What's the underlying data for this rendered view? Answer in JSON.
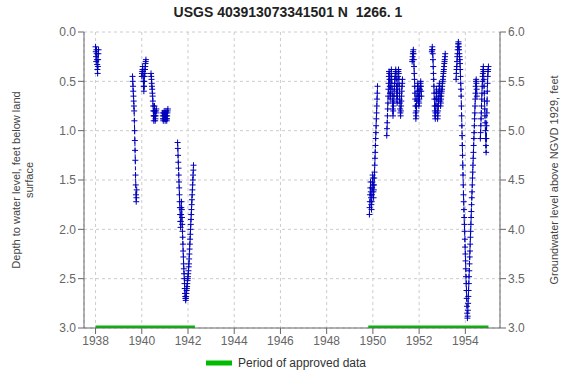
{
  "chart_data": {
    "type": "line",
    "title": "USGS 403913073341501 N  1266. 1",
    "ylabel": "Depth to water level, feet below land\nsurface",
    "y2label": "Groundwater level above NGVD 1929, feet",
    "xlim": [
      1937.5,
      1955.5
    ],
    "xticks": [
      1938,
      1940,
      1942,
      1944,
      1946,
      1948,
      1950,
      1952,
      1954
    ],
    "ylim": [
      3.0,
      0.0
    ],
    "yticks": [
      {
        "value": 0.0,
        "label": "0.0"
      },
      0.5,
      {
        "value": 1.0,
        "label": "1.0"
      },
      1.5,
      {
        "value": 2.0,
        "label": "2.0"
      },
      2.5,
      {
        "value": 3.0,
        "label": "3.0"
      }
    ],
    "y2lim": [
      3.0,
      6.0
    ],
    "y2ticks": [
      {
        "value": 3.0,
        "label": "3.0"
      },
      3.5,
      {
        "value": 4.0,
        "label": "4.0"
      },
      4.5,
      {
        "value": 5.0,
        "label": "5.0"
      },
      5.5,
      {
        "value": 6.0,
        "label": "6.0"
      }
    ],
    "grid": true,
    "legend": "bottom",
    "color": "#0000bb",
    "marker": "plus",
    "line_style": "dashed",
    "series": [
      {
        "x": [
          1938.0,
          1938.01,
          1938.02,
          1938.03,
          1938.04,
          1938.05,
          1938.06,
          1938.07,
          1938.08,
          1938.09,
          1938.1,
          1938.11,
          1938.12,
          1938.13
        ],
        "values": [
          0.15,
          0.2,
          0.25,
          0.3,
          0.18,
          0.22,
          0.28,
          0.33,
          0.38,
          0.42,
          0.35,
          0.28,
          0.22,
          0.18
        ]
      },
      {
        "x": [
          1939.6,
          1939.61,
          1939.62,
          1939.63,
          1939.64,
          1939.65,
          1939.66,
          1939.67,
          1939.68,
          1939.69,
          1939.7,
          1939.71,
          1939.72,
          1939.73,
          1939.74,
          1939.75,
          1939.76,
          1939.77,
          1939.78
        ],
        "values": [
          0.45,
          0.5,
          0.55,
          0.6,
          0.65,
          0.7,
          0.75,
          0.8,
          0.9,
          1.0,
          1.1,
          1.2,
          1.3,
          1.45,
          1.55,
          1.65,
          1.72,
          1.68,
          1.6
        ]
      },
      {
        "x": [
          1940.0,
          1940.01,
          1940.02,
          1940.03,
          1940.04,
          1940.05,
          1940.06,
          1940.07,
          1940.08,
          1940.09,
          1940.1,
          1940.11,
          1940.12,
          1940.13,
          1940.14,
          1940.15,
          1940.16,
          1940.17,
          1940.18
        ],
        "values": [
          0.45,
          0.42,
          0.4,
          0.38,
          0.35,
          0.4,
          0.45,
          0.5,
          0.55,
          0.6,
          0.55,
          0.5,
          0.45,
          0.42,
          0.38,
          0.35,
          0.32,
          0.3,
          0.28
        ]
      },
      {
        "x": [
          1940.4,
          1940.41,
          1940.42,
          1940.43,
          1940.44,
          1940.45,
          1940.46,
          1940.47,
          1940.48,
          1940.49,
          1940.5,
          1940.51,
          1940.52,
          1940.53,
          1940.54,
          1940.55,
          1940.56,
          1940.57,
          1940.58,
          1940.59,
          1940.6,
          1940.61,
          1940.62,
          1940.63
        ],
        "values": [
          0.42,
          0.45,
          0.48,
          0.52,
          0.55,
          0.58,
          0.62,
          0.65,
          0.7,
          0.75,
          0.8,
          0.85,
          0.9,
          0.85,
          0.8,
          0.75,
          0.8,
          0.85,
          0.9,
          0.88,
          0.85,
          0.82,
          0.8,
          0.78
        ]
      },
      {
        "x": [
          1940.9,
          1940.91,
          1940.92,
          1940.93,
          1940.94,
          1940.95,
          1940.96,
          1940.97,
          1940.98,
          1940.99,
          1941.0,
          1941.01,
          1941.02,
          1941.03,
          1941.04,
          1941.05,
          1941.06,
          1941.07,
          1941.08,
          1941.09,
          1941.1,
          1941.11,
          1941.12,
          1941.13
        ],
        "values": [
          0.82,
          0.85,
          0.88,
          0.9,
          0.88,
          0.85,
          0.82,
          0.8,
          0.83,
          0.85,
          0.88,
          0.9,
          0.88,
          0.85,
          0.82,
          0.8,
          0.85,
          0.88,
          0.9,
          0.88,
          0.85,
          0.82,
          0.8,
          0.78
        ]
      },
      {
        "x": [
          1941.55,
          1941.56,
          1941.57,
          1941.58,
          1941.59,
          1941.6,
          1941.61,
          1941.62,
          1941.63,
          1941.64,
          1941.65,
          1941.66,
          1941.67,
          1941.68,
          1941.69,
          1941.7,
          1941.71,
          1941.72,
          1941.73,
          1941.74,
          1941.75,
          1941.76,
          1941.77,
          1941.78,
          1941.79,
          1941.8,
          1941.81,
          1941.82,
          1941.83,
          1941.84,
          1941.85,
          1941.86,
          1941.87,
          1941.88,
          1941.89,
          1941.9,
          1941.91,
          1941.92,
          1941.93,
          1941.94,
          1941.95,
          1941.96,
          1941.97,
          1941.98,
          1941.99,
          1942.0,
          1942.01,
          1942.02,
          1942.03,
          1942.04,
          1942.05,
          1942.06,
          1942.07,
          1942.08,
          1942.09,
          1942.1,
          1942.11,
          1942.12,
          1942.13,
          1942.14,
          1942.15,
          1942.16,
          1942.17,
          1942.18,
          1942.19,
          1942.2,
          1942.21,
          1942.22,
          1942.23,
          1942.24
        ],
        "values": [
          1.12,
          1.18,
          1.25,
          1.32,
          1.38,
          1.45,
          1.52,
          1.58,
          1.65,
          1.72,
          1.78,
          1.85,
          1.92,
          1.98,
          1.92,
          1.85,
          1.78,
          1.72,
          1.8,
          1.88,
          1.95,
          2.02,
          2.08,
          2.15,
          2.22,
          2.28,
          2.35,
          2.4,
          2.45,
          2.5,
          2.55,
          2.6,
          2.65,
          2.68,
          2.7,
          2.72,
          2.7,
          2.68,
          2.65,
          2.62,
          2.6,
          2.58,
          2.55,
          2.52,
          2.5,
          2.48,
          2.45,
          2.42,
          2.38,
          2.35,
          2.3,
          2.25,
          2.2,
          2.15,
          2.1,
          2.05,
          2.0,
          1.95,
          1.9,
          1.85,
          1.8,
          1.75,
          1.7,
          1.65,
          1.6,
          1.55,
          1.5,
          1.45,
          1.4,
          1.35
        ]
      },
      {
        "x": [
          1949.85,
          1949.86,
          1949.87,
          1949.88,
          1949.89,
          1949.9,
          1949.91,
          1949.92,
          1949.93,
          1949.94,
          1949.95,
          1949.96,
          1949.97,
          1949.98,
          1949.99,
          1950.0,
          1950.01,
          1950.02,
          1950.03,
          1950.04,
          1950.05,
          1950.06,
          1950.07,
          1950.08,
          1950.09,
          1950.1,
          1950.11,
          1950.12,
          1950.13,
          1950.14,
          1950.15,
          1950.16,
          1950.17,
          1950.18,
          1950.19,
          1950.2
        ],
        "values": [
          1.85,
          1.78,
          1.72,
          1.65,
          1.58,
          1.52,
          1.62,
          1.68,
          1.75,
          1.8,
          1.72,
          1.65,
          1.58,
          1.52,
          1.45,
          1.48,
          1.55,
          1.62,
          1.68,
          1.6,
          1.55,
          1.48,
          1.42,
          1.35,
          1.28,
          1.22,
          1.15,
          1.08,
          1.02,
          0.95,
          0.88,
          0.82,
          0.75,
          0.68,
          0.62,
          0.55
        ]
      },
      {
        "x": [
          1950.6,
          1950.61,
          1950.62,
          1950.63,
          1950.64,
          1950.65,
          1950.66,
          1950.67,
          1950.68,
          1950.69,
          1950.7,
          1950.71,
          1950.72,
          1950.73,
          1950.74,
          1950.75,
          1950.76,
          1950.77,
          1950.78,
          1950.79,
          1950.8,
          1950.81,
          1950.82,
          1950.83,
          1950.84,
          1950.85,
          1950.86,
          1950.87,
          1950.88,
          1950.89,
          1950.9,
          1950.91,
          1950.92,
          1950.93,
          1950.94,
          1950.95,
          1950.96,
          1950.97,
          1950.98,
          1950.99,
          1951.0,
          1951.01,
          1951.02,
          1951.03,
          1951.04,
          1951.05,
          1951.06,
          1951.07,
          1951.08,
          1951.09,
          1951.1,
          1951.11,
          1951.12,
          1951.13,
          1951.14,
          1951.15,
          1951.16,
          1951.17,
          1951.18,
          1951.19,
          1951.2,
          1951.21,
          1951.22,
          1951.23,
          1951.24,
          1951.25,
          1951.26,
          1951.27,
          1951.28
        ],
        "values": [
          1.05,
          0.98,
          0.92,
          0.85,
          0.78,
          0.72,
          0.65,
          0.58,
          0.52,
          0.45,
          0.4,
          0.42,
          0.48,
          0.55,
          0.62,
          0.68,
          0.62,
          0.55,
          0.48,
          0.42,
          0.38,
          0.45,
          0.52,
          0.58,
          0.65,
          0.72,
          0.78,
          0.85,
          0.8,
          0.75,
          0.7,
          0.65,
          0.6,
          0.55,
          0.52,
          0.48,
          0.45,
          0.42,
          0.4,
          0.38,
          0.42,
          0.48,
          0.55,
          0.62,
          0.68,
          0.72,
          0.65,
          0.58,
          0.52,
          0.45,
          0.4,
          0.38,
          0.42,
          0.48,
          0.55,
          0.62,
          0.68,
          0.72,
          0.78,
          0.82,
          0.85,
          0.8,
          0.75,
          0.7,
          0.65,
          0.6,
          0.55,
          0.52,
          0.48
        ]
      },
      {
        "x": [
          1951.7,
          1951.71,
          1951.72,
          1951.73,
          1951.74,
          1951.75,
          1951.76,
          1951.77,
          1951.78,
          1951.79,
          1951.8,
          1951.81,
          1951.82,
          1951.83,
          1951.84,
          1951.85,
          1951.86,
          1951.87,
          1951.88,
          1951.89,
          1951.9,
          1951.91,
          1951.92,
          1951.93,
          1951.94,
          1951.95,
          1951.96,
          1951.97,
          1951.98,
          1951.99,
          1952.0,
          1952.01,
          1952.02,
          1952.03,
          1952.04,
          1952.05,
          1952.06,
          1952.07,
          1952.08,
          1952.09,
          1952.1
        ],
        "values": [
          0.3,
          0.28,
          0.25,
          0.22,
          0.2,
          0.18,
          0.22,
          0.28,
          0.35,
          0.42,
          0.48,
          0.55,
          0.62,
          0.68,
          0.75,
          0.82,
          0.88,
          0.85,
          0.8,
          0.75,
          0.7,
          0.65,
          0.6,
          0.55,
          0.52,
          0.55,
          0.6,
          0.65,
          0.7,
          0.75,
          0.72,
          0.68,
          0.65,
          0.6,
          0.58,
          0.55,
          0.52,
          0.5,
          0.55,
          0.6,
          0.65
        ]
      },
      {
        "x": [
          1952.55,
          1952.56,
          1952.57,
          1952.58,
          1952.59,
          1952.6,
          1952.61,
          1952.62,
          1952.63,
          1952.64,
          1952.65,
          1952.66,
          1952.67,
          1952.68,
          1952.69,
          1952.7,
          1952.71,
          1952.72,
          1952.73,
          1952.74,
          1952.75,
          1952.76,
          1952.77,
          1952.78,
          1952.79,
          1952.8,
          1952.81,
          1952.82,
          1952.83,
          1952.84,
          1952.85,
          1952.86,
          1952.87,
          1952.88,
          1952.89,
          1952.9,
          1952.91,
          1952.92,
          1952.93,
          1952.94,
          1952.95,
          1952.96,
          1952.97,
          1952.98,
          1952.99,
          1953.0,
          1953.01,
          1953.02,
          1953.03,
          1953.04,
          1953.05,
          1953.06,
          1953.07,
          1953.08,
          1953.09,
          1953.1,
          1953.11,
          1953.12,
          1953.13
        ],
        "values": [
          0.2,
          0.18,
          0.15,
          0.18,
          0.22,
          0.28,
          0.35,
          0.42,
          0.48,
          0.55,
          0.62,
          0.68,
          0.75,
          0.8,
          0.85,
          0.88,
          0.82,
          0.75,
          0.68,
          0.62,
          0.58,
          0.62,
          0.68,
          0.75,
          0.82,
          0.88,
          0.85,
          0.8,
          0.75,
          0.7,
          0.65,
          0.6,
          0.55,
          0.52,
          0.55,
          0.6,
          0.65,
          0.7,
          0.75,
          0.72,
          0.68,
          0.65,
          0.62,
          0.6,
          0.58,
          0.55,
          0.52,
          0.5,
          0.48,
          0.45,
          0.42,
          0.4,
          0.38,
          0.35,
          0.32,
          0.3,
          0.28,
          0.25,
          0.22
        ]
      },
      {
        "x": [
          1953.6,
          1953.61,
          1953.62,
          1953.63,
          1953.64,
          1953.65,
          1953.66,
          1953.67,
          1953.68,
          1953.69,
          1953.7,
          1953.71,
          1953.72,
          1953.73,
          1953.74,
          1953.75,
          1953.76,
          1953.77,
          1953.78,
          1953.79,
          1953.8,
          1953.81,
          1953.82,
          1953.83,
          1953.84,
          1953.85,
          1953.86,
          1953.87,
          1953.88,
          1953.89,
          1953.9,
          1953.91,
          1953.92,
          1953.93,
          1953.94,
          1953.95,
          1953.96,
          1953.97,
          1953.98,
          1953.99,
          1954.0,
          1954.01,
          1954.02,
          1954.03,
          1954.04,
          1954.05,
          1954.06,
          1954.07,
          1954.08,
          1954.09,
          1954.1,
          1954.11,
          1954.12,
          1954.13,
          1954.14,
          1954.15,
          1954.16,
          1954.17,
          1954.18,
          1954.19,
          1954.2,
          1954.21,
          1954.22,
          1954.23,
          1954.24,
          1954.25,
          1954.26,
          1954.27,
          1954.28,
          1954.29,
          1954.3,
          1954.31,
          1954.32,
          1954.33,
          1954.34,
          1954.35,
          1954.36,
          1954.37,
          1954.38,
          1954.39,
          1954.4,
          1954.41,
          1954.42,
          1954.43,
          1954.44,
          1954.45,
          1954.46,
          1954.47,
          1954.48,
          1954.49,
          1954.5
        ],
        "values": [
          0.48,
          0.42,
          0.38,
          0.35,
          0.3,
          0.25,
          0.22,
          0.18,
          0.15,
          0.12,
          0.1,
          0.12,
          0.15,
          0.18,
          0.22,
          0.25,
          0.28,
          0.32,
          0.38,
          0.45,
          0.52,
          0.58,
          0.65,
          0.75,
          0.85,
          0.95,
          1.05,
          1.15,
          1.25,
          1.35,
          1.45,
          1.55,
          1.65,
          1.72,
          1.8,
          1.88,
          1.95,
          2.02,
          2.1,
          2.18,
          2.25,
          2.32,
          2.4,
          2.48,
          2.55,
          2.62,
          2.7,
          2.78,
          2.85,
          2.9,
          2.88,
          2.82,
          2.75,
          2.68,
          2.62,
          2.55,
          2.48,
          2.42,
          2.35,
          2.28,
          2.22,
          2.15,
          2.08,
          2.02,
          1.95,
          1.88,
          1.82,
          1.75,
          1.68,
          1.62,
          1.55,
          1.48,
          1.42,
          1.35,
          1.28,
          1.22,
          1.15,
          1.08,
          1.02,
          0.95,
          0.88,
          0.82,
          0.75,
          0.68,
          0.62,
          0.55,
          0.5,
          0.48,
          0.52,
          0.58,
          0.65
        ]
      },
      {
        "x": [
          1954.65,
          1954.66,
          1954.67,
          1954.68,
          1954.69,
          1954.7,
          1954.71,
          1954.72,
          1954.73,
          1954.74,
          1954.75,
          1954.76,
          1954.77,
          1954.78,
          1954.79,
          1954.8,
          1954.81,
          1954.82,
          1954.83,
          1954.84,
          1954.85,
          1954.86,
          1954.87,
          1954.88,
          1954.89,
          1954.9,
          1954.91,
          1954.92,
          1954.93,
          1954.94,
          1954.95,
          1954.96,
          1954.97,
          1954.98,
          1954.99,
          1955.0
        ],
        "values": [
          1.08,
          1.02,
          0.95,
          0.88,
          0.82,
          0.75,
          0.68,
          0.62,
          0.55,
          0.5,
          0.45,
          0.42,
          0.38,
          0.35,
          0.4,
          0.48,
          0.55,
          0.62,
          0.7,
          0.78,
          0.85,
          0.92,
          1.0,
          1.08,
          1.15,
          1.22,
          1.08,
          0.95,
          0.82,
          0.7,
          0.6,
          0.52,
          0.45,
          0.4,
          0.38,
          0.35
        ]
      }
    ],
    "approved_periods": {
      "name": "Period of approved data",
      "color": "#00bb00",
      "value": 3.0,
      "ranges": [
        [
          1938.0,
          1942.3
        ],
        [
          1949.8,
          1955.0
        ]
      ]
    }
  }
}
